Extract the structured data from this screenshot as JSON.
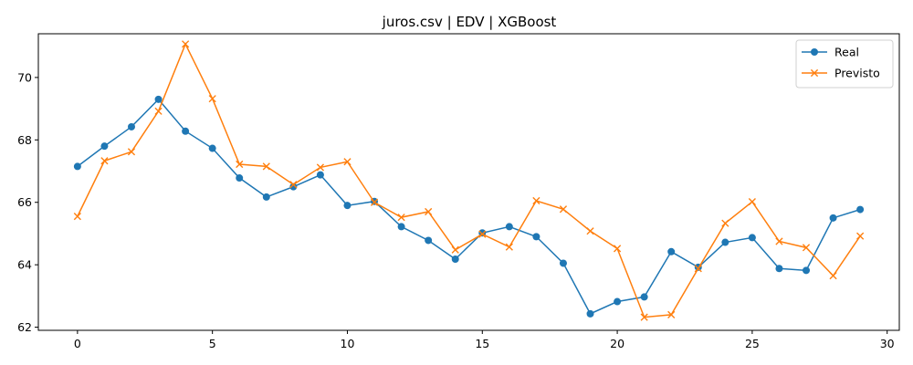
{
  "chart_data": {
    "type": "line",
    "title": "juros.csv | EDV | XGBoost",
    "xlabel": "",
    "ylabel": "",
    "xlim": [
      -1.45,
      30.45
    ],
    "ylim": [
      61.9,
      71.4
    ],
    "xticks": [
      0,
      5,
      10,
      15,
      20,
      25,
      30
    ],
    "yticks": [
      62,
      64,
      66,
      68,
      70
    ],
    "grid": false,
    "legend_position": "top-right",
    "x": [
      0,
      1,
      2,
      3,
      4,
      5,
      6,
      7,
      8,
      9,
      10,
      11,
      12,
      13,
      14,
      15,
      16,
      17,
      18,
      19,
      20,
      21,
      22,
      23,
      24,
      25,
      26,
      27,
      28,
      29
    ],
    "series": [
      {
        "name": "Real",
        "color": "#1f77b4",
        "marker": "circle",
        "values": [
          67.15,
          67.8,
          68.42,
          69.3,
          68.28,
          67.73,
          66.78,
          66.17,
          66.5,
          66.88,
          65.9,
          66.03,
          65.22,
          64.78,
          64.18,
          65.02,
          65.22,
          64.9,
          64.05,
          62.43,
          62.82,
          62.97,
          64.42,
          63.92,
          64.72,
          64.87,
          63.88,
          63.82,
          65.5,
          65.77
        ]
      },
      {
        "name": "Previsto",
        "color": "#ff7f0e",
        "marker": "x",
        "values": [
          65.55,
          67.33,
          67.62,
          68.92,
          71.07,
          69.32,
          67.22,
          67.15,
          66.57,
          67.12,
          67.3,
          66.0,
          65.52,
          65.7,
          64.48,
          64.98,
          64.57,
          66.05,
          65.78,
          65.08,
          64.52,
          62.32,
          62.4,
          63.88,
          65.33,
          66.02,
          64.75,
          64.55,
          63.65,
          64.92
        ]
      }
    ]
  }
}
